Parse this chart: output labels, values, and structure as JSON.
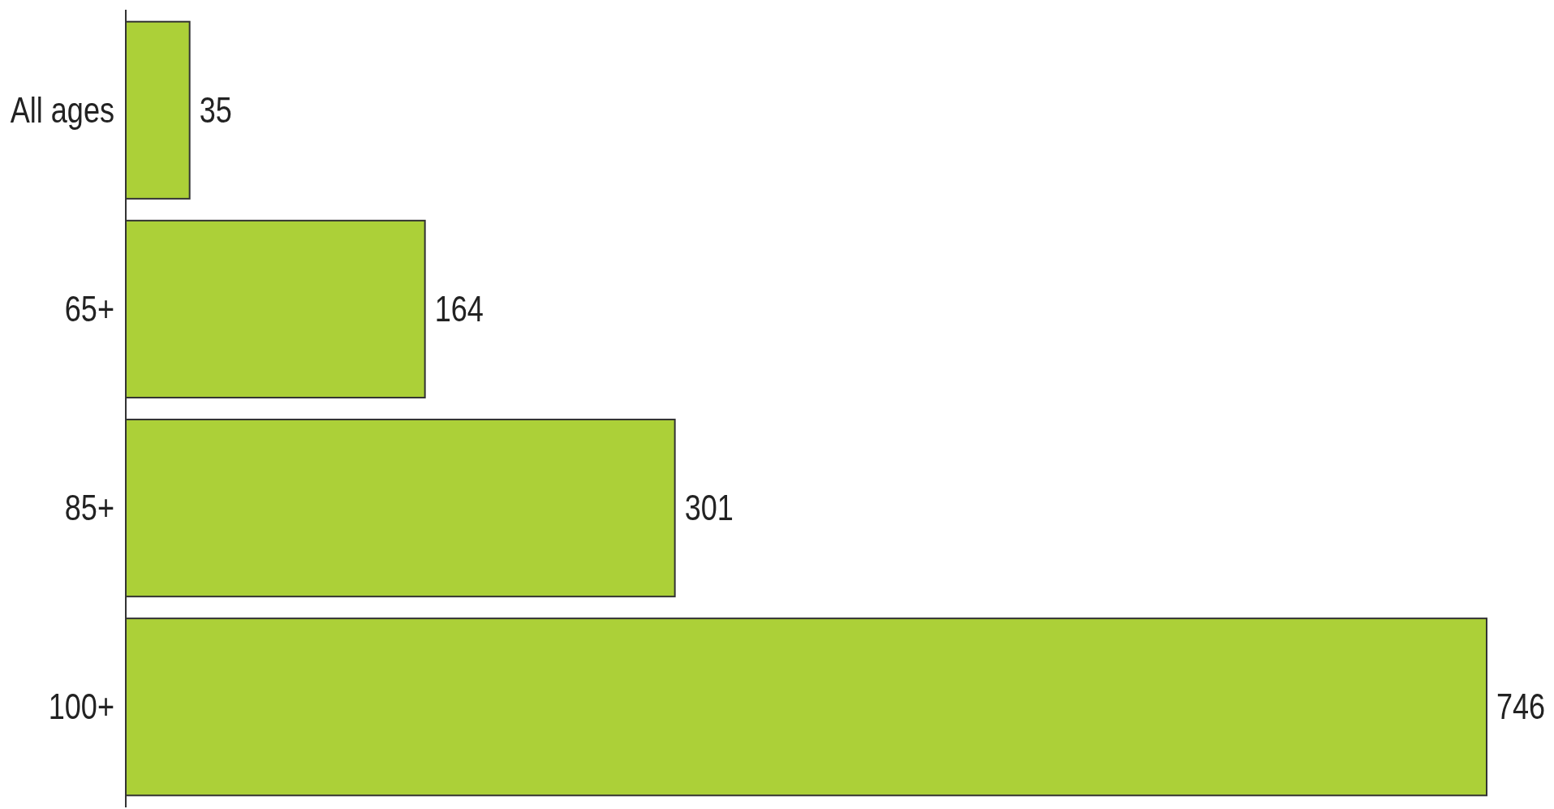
{
  "chart_data": {
    "type": "bar",
    "orientation": "horizontal",
    "categories": [
      "All ages",
      "65+",
      "85+",
      "100+"
    ],
    "values": [
      35,
      164,
      301,
      746
    ],
    "color": "#acd038",
    "data_labels": true
  }
}
